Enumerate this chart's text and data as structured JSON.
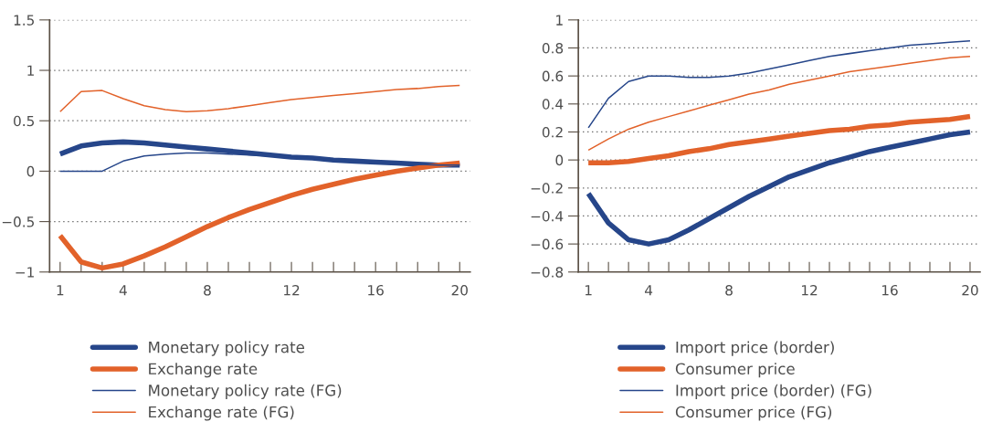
{
  "chart_data": [
    {
      "type": "line",
      "x": [
        1,
        2,
        3,
        4,
        5,
        6,
        7,
        8,
        9,
        10,
        11,
        12,
        13,
        14,
        15,
        16,
        17,
        18,
        19,
        20
      ],
      "xlim": [
        0.5,
        20.5
      ],
      "xticks": [
        1,
        {
          "value": 2,
          "label": null
        },
        {
          "value": 3,
          "label": null
        },
        4,
        {
          "value": 5,
          "label": null
        },
        {
          "value": 6,
          "label": null
        },
        {
          "value": 7,
          "label": null
        },
        8,
        {
          "value": 9,
          "label": null
        },
        {
          "value": 10,
          "label": null
        },
        {
          "value": 11,
          "label": null
        },
        12,
        {
          "value": 13,
          "label": null
        },
        {
          "value": 14,
          "label": null
        },
        {
          "value": 15,
          "label": null
        },
        16,
        {
          "value": 17,
          "label": null
        },
        {
          "value": 18,
          "label": null
        },
        {
          "value": 19,
          "label": null
        },
        20
      ],
      "ylim": [
        -1,
        1.5
      ],
      "yticks": [
        {
          "value": -1,
          "label": "−1"
        },
        {
          "value": -0.5,
          "label": "−0.5"
        },
        0,
        0.5,
        1,
        1.5
      ],
      "grid": "y",
      "legend": "bottom",
      "series": [
        {
          "name": "Monetary policy rate",
          "color": "#26468a",
          "values": [
            0.17,
            0.25,
            0.28,
            0.29,
            0.28,
            0.26,
            0.24,
            0.22,
            0.2,
            0.18,
            0.16,
            0.14,
            0.13,
            0.11,
            0.1,
            0.09,
            0.08,
            0.07,
            0.06,
            0.06
          ]
        },
        {
          "name": "Exchange rate",
          "color": "#e2622a",
          "values": [
            -0.64,
            -0.9,
            -0.96,
            -0.92,
            -0.84,
            -0.75,
            -0.65,
            -0.55,
            -0.46,
            -0.38,
            -0.31,
            -0.24,
            -0.18,
            -0.13,
            -0.08,
            -0.04,
            0.0,
            0.03,
            0.06,
            0.08
          ]
        },
        {
          "name": "Monetary policy rate (FG)",
          "color": "#26468a",
          "values": [
            0,
            0,
            0,
            0.1,
            0.15,
            0.17,
            0.18,
            0.18,
            0.17,
            0.16,
            0.15,
            0.14,
            0.12,
            0.11,
            0.1,
            0.09,
            0.08,
            0.07,
            0.06,
            0.06
          ]
        },
        {
          "name": "Exchange rate (FG)",
          "color": "#e2622a",
          "values": [
            0.59,
            0.79,
            0.8,
            0.72,
            0.65,
            0.61,
            0.59,
            0.6,
            0.62,
            0.65,
            0.68,
            0.71,
            0.73,
            0.75,
            0.77,
            0.79,
            0.81,
            0.82,
            0.84,
            0.85
          ]
        }
      ]
    },
    {
      "type": "line",
      "x": [
        1,
        2,
        3,
        4,
        5,
        6,
        7,
        8,
        9,
        10,
        11,
        12,
        13,
        14,
        15,
        16,
        17,
        18,
        19,
        20
      ],
      "xlim": [
        0.5,
        20.5
      ],
      "xticks": [
        1,
        {
          "value": 2,
          "label": null
        },
        {
          "value": 3,
          "label": null
        },
        4,
        {
          "value": 5,
          "label": null
        },
        {
          "value": 6,
          "label": null
        },
        {
          "value": 7,
          "label": null
        },
        8,
        {
          "value": 9,
          "label": null
        },
        {
          "value": 10,
          "label": null
        },
        {
          "value": 11,
          "label": null
        },
        12,
        {
          "value": 13,
          "label": null
        },
        {
          "value": 14,
          "label": null
        },
        {
          "value": 15,
          "label": null
        },
        16,
        {
          "value": 17,
          "label": null
        },
        {
          "value": 18,
          "label": null
        },
        {
          "value": 19,
          "label": null
        },
        20
      ],
      "ylim": [
        -0.8,
        1
      ],
      "yticks": [
        {
          "value": -0.8,
          "label": "−0.8"
        },
        {
          "value": -0.6,
          "label": "−0.6"
        },
        {
          "value": -0.4,
          "label": "−0.4"
        },
        {
          "value": -0.2,
          "label": "−0.2"
        },
        0,
        0.2,
        0.4,
        0.6,
        0.8,
        1
      ],
      "grid": "y",
      "legend": "bottom",
      "series": [
        {
          "name": "Import price (border)",
          "color": "#26468a",
          "values": [
            -0.24,
            -0.45,
            -0.57,
            -0.6,
            -0.57,
            -0.5,
            -0.42,
            -0.34,
            -0.26,
            -0.19,
            -0.12,
            -0.07,
            -0.02,
            0.02,
            0.06,
            0.09,
            0.12,
            0.15,
            0.18,
            0.2
          ]
        },
        {
          "name": "Consumer price",
          "color": "#e2622a",
          "values": [
            -0.02,
            -0.02,
            -0.01,
            0.01,
            0.03,
            0.06,
            0.08,
            0.11,
            0.13,
            0.15,
            0.17,
            0.19,
            0.21,
            0.22,
            0.24,
            0.25,
            0.27,
            0.28,
            0.29,
            0.31
          ]
        },
        {
          "name": "Import price (border) (FG)",
          "color": "#26468a",
          "values": [
            0.23,
            0.44,
            0.56,
            0.6,
            0.6,
            0.59,
            0.59,
            0.6,
            0.62,
            0.65,
            0.68,
            0.71,
            0.74,
            0.76,
            0.78,
            0.8,
            0.82,
            0.83,
            0.84,
            0.85
          ]
        },
        {
          "name": "Consumer price (FG)",
          "color": "#e2622a",
          "values": [
            0.07,
            0.15,
            0.22,
            0.27,
            0.31,
            0.35,
            0.39,
            0.43,
            0.47,
            0.5,
            0.54,
            0.57,
            0.6,
            0.63,
            0.65,
            0.67,
            0.69,
            0.71,
            0.73,
            0.74
          ]
        }
      ]
    }
  ]
}
